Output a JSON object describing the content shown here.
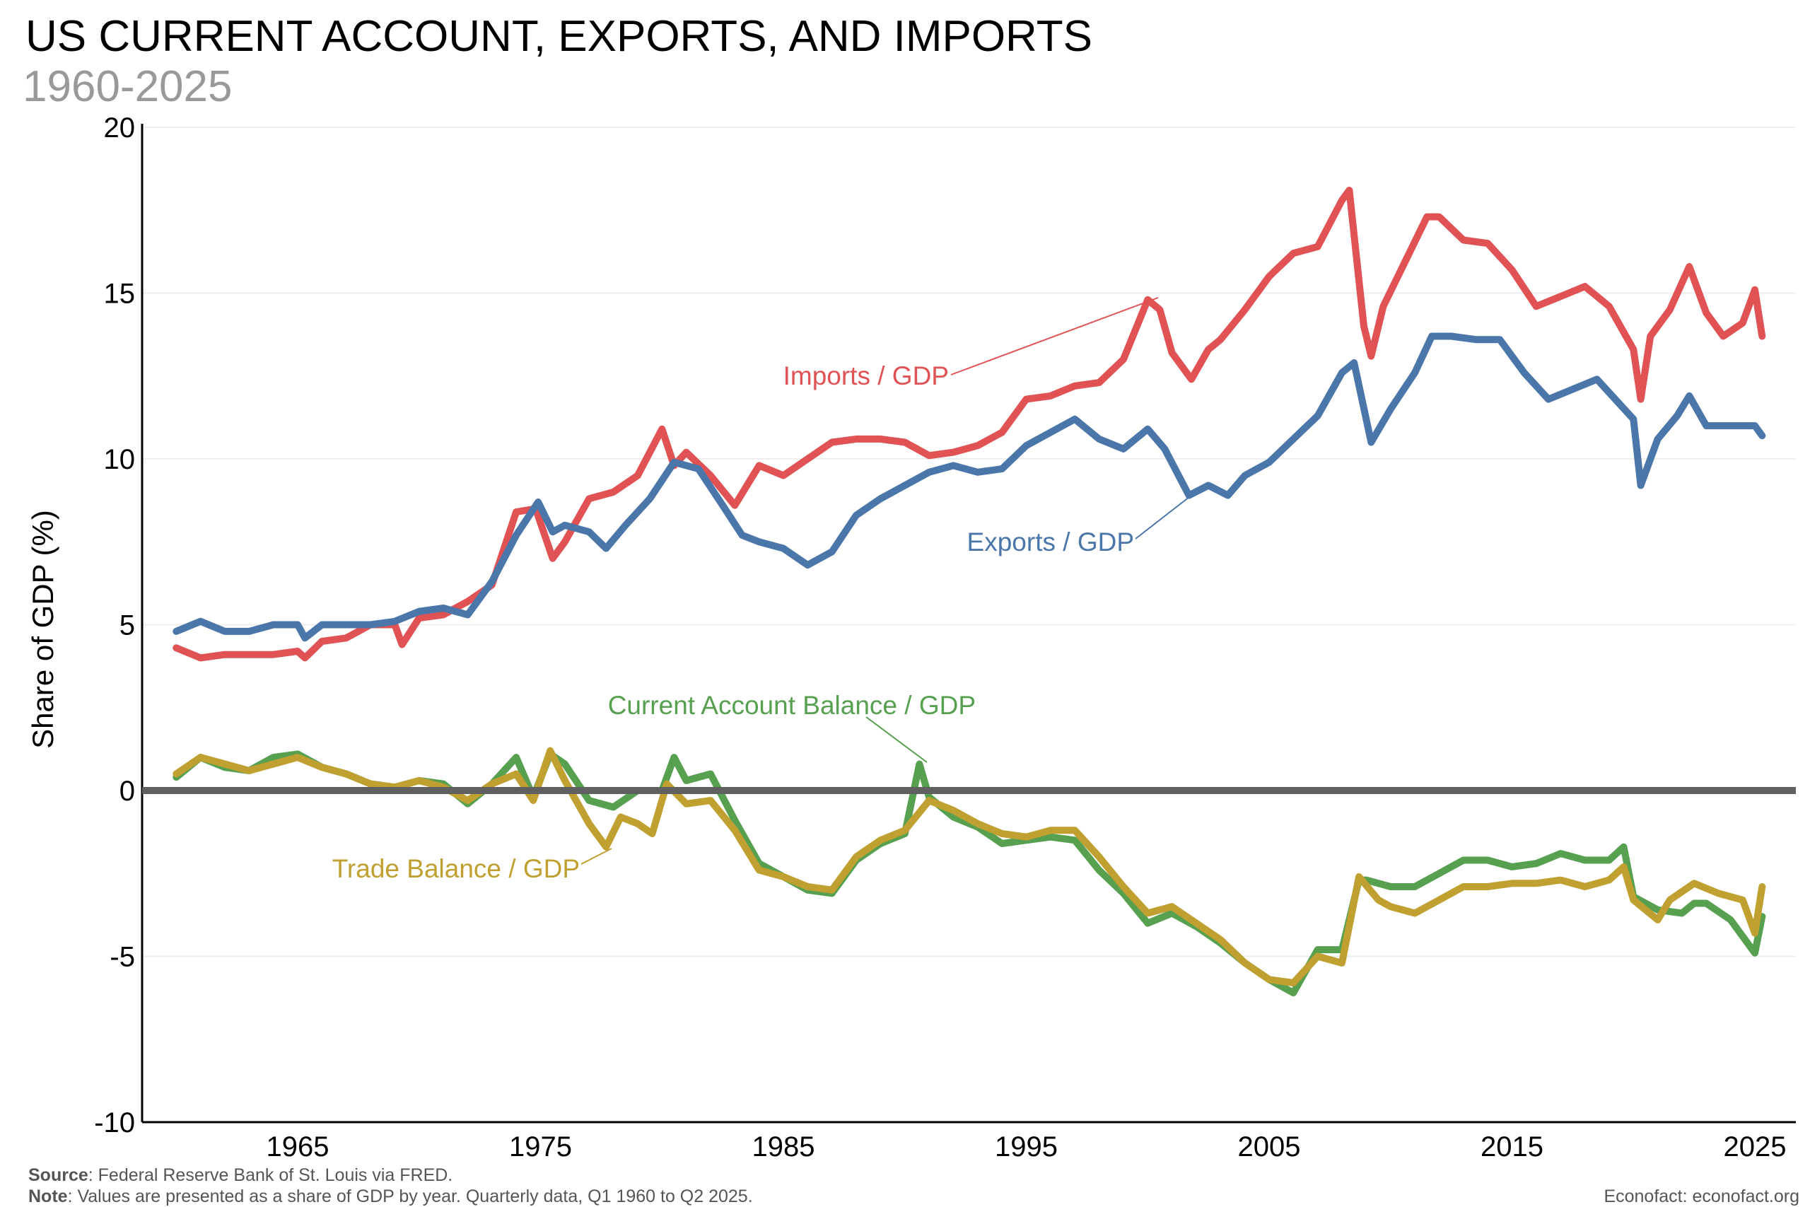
{
  "chart_data": {
    "type": "line",
    "title": "US CURRENT ACCOUNT, EXPORTS, AND IMPORTS",
    "subtitle": "1960-2025",
    "xlabel": "",
    "ylabel": "Share of GDP (%)",
    "xlim": [
      1959.5,
      2026.3
    ],
    "ylim": [
      -10,
      20
    ],
    "yticks": [
      "-10",
      "-5",
      "0",
      "5",
      "10",
      "15",
      "20"
    ],
    "xticks": [
      "1965",
      "1975",
      "1985",
      "1995",
      "2005",
      "2015",
      "2025"
    ],
    "grid": "horizontal, faint",
    "legend": "direct labels",
    "series": [
      {
        "name": "Imports / GDP",
        "color": "#e05254",
        "x": [
          1960,
          1961,
          1962,
          1963,
          1964,
          1965,
          1965.3,
          1966,
          1967,
          1968,
          1969,
          1969.3,
          1970,
          1971,
          1972,
          1973,
          1974,
          1974.8,
          1975.5,
          1976,
          1977,
          1978,
          1979,
          1980,
          1980.5,
          1981,
          1982,
          1983,
          1984,
          1985,
          1986,
          1987,
          1988,
          1989,
          1990,
          1991,
          1992,
          1993,
          1994,
          1995,
          1996,
          1997,
          1998,
          1999,
          2000,
          2000.5,
          2001,
          2001.8,
          2002.5,
          2003,
          2004,
          2005,
          2006,
          2007,
          2008,
          2008.3,
          2008.9,
          2009.2,
          2009.7,
          2010.5,
          2011.5,
          2012,
          2013,
          2014,
          2015,
          2016,
          2017,
          2018,
          2019,
          2020,
          2020.3,
          2020.7,
          2021.5,
          2022.3,
          2023,
          2023.7,
          2024.5,
          2025,
          2025.3
        ],
        "y": [
          4.3,
          4.0,
          4.1,
          4.1,
          4.1,
          4.2,
          4.0,
          4.5,
          4.6,
          5.0,
          5.0,
          4.4,
          5.2,
          5.3,
          5.7,
          6.2,
          8.4,
          8.5,
          7.0,
          7.5,
          8.8,
          9.0,
          9.5,
          10.9,
          9.8,
          10.2,
          9.5,
          8.6,
          9.8,
          9.5,
          10.0,
          10.5,
          10.6,
          10.6,
          10.5,
          10.1,
          10.2,
          10.4,
          10.8,
          11.8,
          11.9,
          12.2,
          12.3,
          13.0,
          14.8,
          14.5,
          13.2,
          12.4,
          13.3,
          13.6,
          14.5,
          15.5,
          16.2,
          16.4,
          17.8,
          18.1,
          14.0,
          13.1,
          14.6,
          15.8,
          17.3,
          17.3,
          16.6,
          16.5,
          15.7,
          14.6,
          14.9,
          15.2,
          14.6,
          13.3,
          11.8,
          13.7,
          14.5,
          15.8,
          14.4,
          13.7,
          14.1,
          15.1,
          13.7
        ]
      },
      {
        "name": "Exports / GDP",
        "color": "#4a76aa",
        "x": [
          1960,
          1961,
          1962,
          1963,
          1964,
          1965,
          1965.3,
          1966,
          1967,
          1968,
          1969,
          1970,
          1971,
          1972,
          1973,
          1974,
          1974.9,
          1975.5,
          1976,
          1977,
          1977.7,
          1978.5,
          1979.5,
          1980.5,
          1981.5,
          1982.5,
          1983.3,
          1984,
          1985,
          1986,
          1987,
          1988,
          1989,
          1990,
          1991,
          1992,
          1993,
          1994,
          1995,
          1996,
          1997,
          1998,
          1999,
          2000,
          2000.7,
          2001.7,
          2002.5,
          2003.3,
          2004,
          2005,
          2006,
          2007,
          2008,
          2008.5,
          2009.2,
          2010,
          2011,
          2011.7,
          2012.5,
          2013.5,
          2014.5,
          2015.5,
          2016.5,
          2017.5,
          2018.5,
          2019.5,
          2020,
          2020.3,
          2021,
          2021.8,
          2022.3,
          2023,
          2024,
          2025,
          2025.3
        ],
        "y": [
          4.8,
          5.1,
          4.8,
          4.8,
          5.0,
          5.0,
          4.6,
          5.0,
          5.0,
          5.0,
          5.1,
          5.4,
          5.5,
          5.3,
          6.3,
          7.7,
          8.7,
          7.8,
          8.0,
          7.8,
          7.3,
          8.0,
          8.8,
          9.9,
          9.7,
          8.6,
          7.7,
          7.5,
          7.3,
          6.8,
          7.2,
          8.3,
          8.8,
          9.2,
          9.6,
          9.8,
          9.6,
          9.7,
          10.4,
          10.8,
          11.2,
          10.6,
          10.3,
          10.9,
          10.3,
          8.9,
          9.2,
          8.9,
          9.5,
          9.9,
          10.6,
          11.3,
          12.6,
          12.9,
          10.5,
          11.5,
          12.6,
          13.7,
          13.7,
          13.6,
          13.6,
          12.6,
          11.8,
          12.1,
          12.4,
          11.6,
          11.2,
          9.2,
          10.6,
          11.3,
          11.9,
          11.0,
          11.0,
          11.0,
          10.7
        ]
      },
      {
        "name": "Current Account Balance / GDP",
        "color": "#56a050",
        "x": [
          1960,
          1961,
          1962,
          1963,
          1964,
          1965,
          1966,
          1967,
          1968,
          1969,
          1970,
          1971,
          1972,
          1973,
          1974,
          1974.7,
          1975.4,
          1976,
          1977,
          1978,
          1979,
          1980,
          1980.5,
          1981,
          1982,
          1983,
          1984,
          1985,
          1986,
          1987,
          1988,
          1989,
          1990,
          1990.6,
          1991,
          1992,
          1993,
          1994,
          1995,
          1996,
          1997,
          1998,
          1999,
          2000,
          2001,
          2002,
          2003,
          2004,
          2005,
          2006,
          2007,
          2008,
          2008.7,
          2009,
          2010,
          2011,
          2012,
          2013,
          2014,
          2015,
          2016,
          2017,
          2018,
          2019,
          2019.6,
          2020,
          2021,
          2022,
          2022.5,
          2023,
          2024,
          2025,
          2025.3
        ],
        "y": [
          0.4,
          1.0,
          0.7,
          0.6,
          1.0,
          1.1,
          0.7,
          0.5,
          0.2,
          0.1,
          0.3,
          0.2,
          -0.4,
          0.2,
          1.0,
          -0.2,
          1.1,
          0.8,
          -0.3,
          -0.5,
          0.0,
          0.0,
          1.0,
          0.3,
          0.5,
          -0.9,
          -2.2,
          -2.6,
          -3.0,
          -3.1,
          -2.1,
          -1.6,
          -1.3,
          0.8,
          -0.2,
          -0.8,
          -1.1,
          -1.6,
          -1.5,
          -1.4,
          -1.5,
          -2.4,
          -3.1,
          -4.0,
          -3.7,
          -4.1,
          -4.6,
          -5.2,
          -5.7,
          -6.1,
          -4.8,
          -4.8,
          -2.7,
          -2.7,
          -2.9,
          -2.9,
          -2.5,
          -2.1,
          -2.1,
          -2.3,
          -2.2,
          -1.9,
          -2.1,
          -2.1,
          -1.7,
          -3.2,
          -3.6,
          -3.7,
          -3.4,
          -3.4,
          -3.9,
          -4.9,
          -3.8
        ]
      },
      {
        "name": "Trade Balance / GDP",
        "color": "#c0a030",
        "x": [
          1960,
          1961,
          1962,
          1963,
          1964,
          1965,
          1966,
          1967,
          1968,
          1969,
          1970,
          1971,
          1972,
          1973,
          1974,
          1974.7,
          1975.4,
          1976,
          1977,
          1977.7,
          1978.3,
          1979,
          1979.6,
          1980.2,
          1981,
          1982,
          1983,
          1984,
          1985,
          1986,
          1987,
          1988,
          1989,
          1990,
          1991,
          1992,
          1993,
          1994,
          1995,
          1996,
          1997,
          1998,
          1999,
          2000,
          2001,
          2002,
          2003,
          2004,
          2005,
          2006,
          2007,
          2008,
          2008.7,
          2009.5,
          2010,
          2011,
          2012,
          2013,
          2014,
          2015,
          2016,
          2017,
          2018,
          2019,
          2019.6,
          2020,
          2021,
          2021.5,
          2022.5,
          2023.5,
          2024.5,
          2025,
          2025.3
        ],
        "y": [
          0.5,
          1.0,
          0.8,
          0.6,
          0.8,
          1.0,
          0.7,
          0.5,
          0.2,
          0.1,
          0.3,
          0.1,
          -0.3,
          0.2,
          0.5,
          -0.3,
          1.2,
          0.3,
          -1.0,
          -1.7,
          -0.8,
          -1.0,
          -1.3,
          0.2,
          -0.4,
          -0.3,
          -1.2,
          -2.4,
          -2.6,
          -2.9,
          -3.0,
          -2.0,
          -1.5,
          -1.2,
          -0.3,
          -0.6,
          -1.0,
          -1.3,
          -1.4,
          -1.2,
          -1.2,
          -2.0,
          -2.9,
          -3.7,
          -3.5,
          -4.0,
          -4.5,
          -5.2,
          -5.7,
          -5.8,
          -5.0,
          -5.2,
          -2.6,
          -3.3,
          -3.5,
          -3.7,
          -3.3,
          -2.9,
          -2.9,
          -2.8,
          -2.8,
          -2.7,
          -2.9,
          -2.7,
          -2.3,
          -3.3,
          -3.9,
          -3.3,
          -2.8,
          -3.1,
          -3.3,
          -4.3,
          -2.9
        ]
      }
    ]
  },
  "footer": {
    "source_label": "Source",
    "source_text": ": Federal Reserve Bank of St. Louis via FRED.",
    "note_label": "Note",
    "note_text": ": Values are presented as a share of GDP by year. Quarterly data, Q1 1960 to Q2 2025.",
    "credit": "Econofact: econofact.org"
  }
}
